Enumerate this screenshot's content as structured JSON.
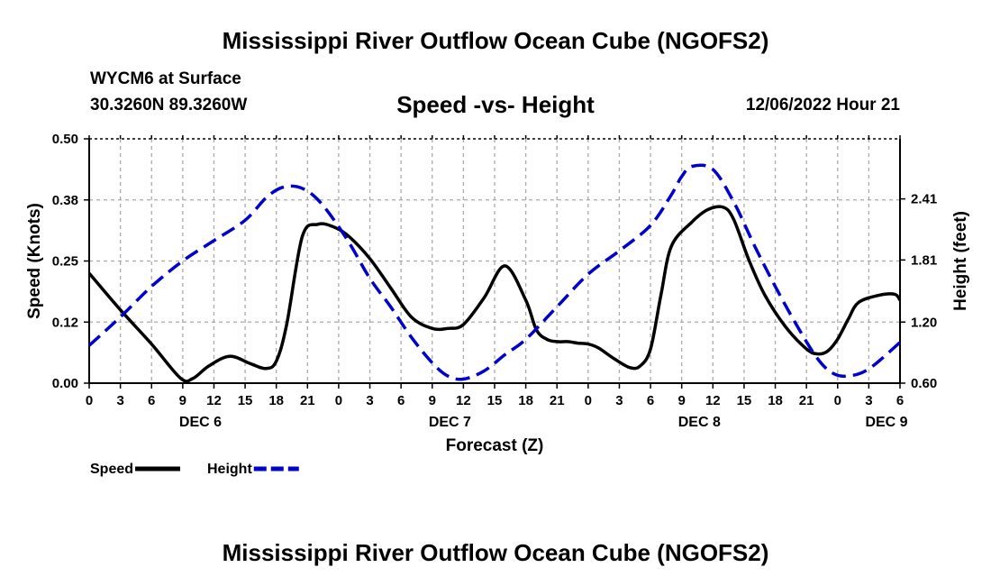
{
  "header": {
    "title": "Mississippi River Outflow Ocean Cube (NGOFS2)",
    "station": "WYCM6 at Surface",
    "coords": "30.3260N  89.3260W",
    "datetime": "12/06/2022 Hour 21"
  },
  "footer": {
    "title": "Mississippi River Outflow Ocean Cube (NGOFS2)"
  },
  "colors": {
    "speed": "#000000",
    "height": "#0000cc",
    "grid": "#aaaaaa"
  },
  "chart_data": {
    "type": "line",
    "title": "Speed -vs- Height",
    "xlabel": "Forecast (Z)",
    "ylabel_left": "Speed (Knots)",
    "ylabel_right": "Height (feet)",
    "x_unit": "hours since DEC 6 00Z",
    "xlim": [
      0,
      78
    ],
    "x_tick_labels": [
      "0",
      "3",
      "6",
      "9",
      "12",
      "15",
      "18",
      "21",
      "0",
      "3",
      "6",
      "9",
      "12",
      "15",
      "18",
      "21",
      "0",
      "3",
      "6",
      "9",
      "12",
      "15",
      "18",
      "21",
      "0",
      "3",
      "6"
    ],
    "day_labels": [
      {
        "label": "DEC 6",
        "x": 12
      },
      {
        "label": "DEC 7",
        "x": 36
      },
      {
        "label": "DEC 8",
        "x": 60
      },
      {
        "label": "DEC 9",
        "x": 78
      }
    ],
    "ylim_left": [
      0,
      0.5
    ],
    "yticks_left": [
      "0.00",
      "0.12",
      "0.25",
      "0.38",
      "0.50"
    ],
    "ylim_right": [
      0.6,
      3.0
    ],
    "yticks_right": [
      {
        "label": "0.60",
        "value": 0.6
      },
      {
        "label": "1.20",
        "value": 1.2
      },
      {
        "label": "1.81",
        "value": 1.81
      },
      {
        "label": "2.41",
        "value": 2.41
      }
    ],
    "grid": true,
    "legend": [
      {
        "label": "Speed",
        "series": 0
      },
      {
        "label": "Height",
        "series": 1
      }
    ],
    "series": [
      {
        "name": "Speed",
        "axis": "left",
        "style": "solid",
        "x": [
          0,
          3,
          6,
          8.8,
          10,
          11.5,
          13.5,
          15.5,
          17,
          18,
          19,
          20.5,
          22,
          23.5,
          25,
          27,
          29,
          31,
          33,
          34.5,
          36,
          38,
          40,
          42,
          43,
          44,
          45,
          46,
          47,
          48,
          49,
          50.5,
          52,
          53,
          54,
          55,
          56,
          58,
          59.5,
          61,
          62,
          63.5,
          65,
          67,
          69,
          70,
          71,
          72,
          73,
          74,
          76,
          77.5,
          78
        ],
        "y": [
          0.225,
          0.15,
          0.08,
          0.01,
          0.01,
          0.035,
          0.055,
          0.04,
          0.03,
          0.045,
          0.12,
          0.3,
          0.325,
          0.32,
          0.3,
          0.255,
          0.195,
          0.135,
          0.112,
          0.112,
          0.12,
          0.175,
          0.24,
          0.17,
          0.11,
          0.09,
          0.085,
          0.085,
          0.082,
          0.08,
          0.072,
          0.05,
          0.032,
          0.035,
          0.07,
          0.18,
          0.28,
          0.33,
          0.355,
          0.36,
          0.335,
          0.25,
          0.18,
          0.115,
          0.07,
          0.06,
          0.065,
          0.09,
          0.13,
          0.165,
          0.18,
          0.182,
          0.17
        ]
      },
      {
        "name": "Height",
        "axis": "right",
        "style": "dashed",
        "x": [
          0,
          3,
          6,
          9,
          12,
          15,
          17,
          18.5,
          20,
          21.5,
          23,
          25,
          27,
          29,
          31,
          33,
          34.5,
          36,
          38,
          40,
          42,
          45,
          48,
          51,
          54,
          56,
          57,
          58,
          60,
          62,
          64,
          66,
          68,
          70,
          71.5,
          73,
          75,
          78
        ],
        "y": [
          0.97,
          1.25,
          1.55,
          1.8,
          2.0,
          2.2,
          2.42,
          2.52,
          2.53,
          2.45,
          2.28,
          1.98,
          1.63,
          1.35,
          1.05,
          0.8,
          0.67,
          0.64,
          0.72,
          0.88,
          1.03,
          1.35,
          1.67,
          1.9,
          2.15,
          2.45,
          2.63,
          2.73,
          2.7,
          2.38,
          1.95,
          1.55,
          1.18,
          0.85,
          0.7,
          0.67,
          0.74,
          1.0
        ]
      }
    ]
  }
}
